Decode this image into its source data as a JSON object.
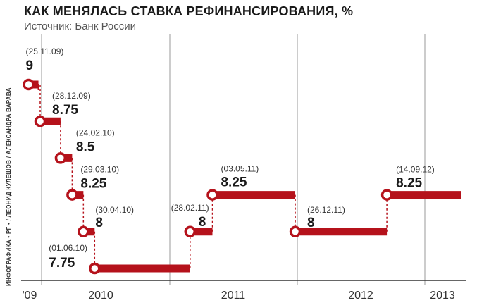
{
  "header": {
    "title": "КАК МЕНЯЛАСЬ СТАВКА РЕФИНАНСИРОВАНИЯ, %",
    "subtitle": "Источник: Банк России"
  },
  "credit": "ИНФОГРАФИКА • РГ • / ЛЕОНИД КУЛЕШОВ / АЛЕКСАНДРА ВАРАВА",
  "colors": {
    "line": "#b5121b",
    "axis": "#333333",
    "grid": "#9a9a9a",
    "text": "#1a1a1a",
    "date": "#333333"
  },
  "chart_data": {
    "type": "line",
    "step": "post",
    "x_axis": {
      "tick_labels": [
        "'09",
        "2010",
        "2011",
        "2012",
        "2013"
      ]
    },
    "points": [
      {
        "date": "25.11.09",
        "value": 9,
        "date_label": "(25.11.09)",
        "value_label": "9"
      },
      {
        "date": "28.12.09",
        "value": 8.75,
        "date_label": "(28.12.09)",
        "value_label": "8.75"
      },
      {
        "date": "24.02.10",
        "value": 8.5,
        "date_label": "(24.02.10)",
        "value_label": "8.5"
      },
      {
        "date": "29.03.10",
        "value": 8.25,
        "date_label": "(29.03.10)",
        "value_label": "8.25"
      },
      {
        "date": "30.04.10",
        "value": 8,
        "date_label": "(30.04.10)",
        "value_label": "8"
      },
      {
        "date": "01.06.10",
        "value": 7.75,
        "date_label": "(01.06.10)",
        "value_label": "7.75"
      },
      {
        "date": "28.02.11",
        "value": 8,
        "date_label": "(28.02.11)",
        "value_label": "8"
      },
      {
        "date": "03.05.11",
        "value": 8.25,
        "date_label": "(03.05.11)",
        "value_label": "8.25"
      },
      {
        "date": "26.12.11",
        "value": 8,
        "date_label": "(26.12.11)",
        "value_label": "8"
      },
      {
        "date": "14.09.12",
        "value": 8.25,
        "date_label": "(14.09.12)",
        "value_label": "8.25"
      }
    ],
    "grid": "vertical",
    "legend": "none"
  }
}
